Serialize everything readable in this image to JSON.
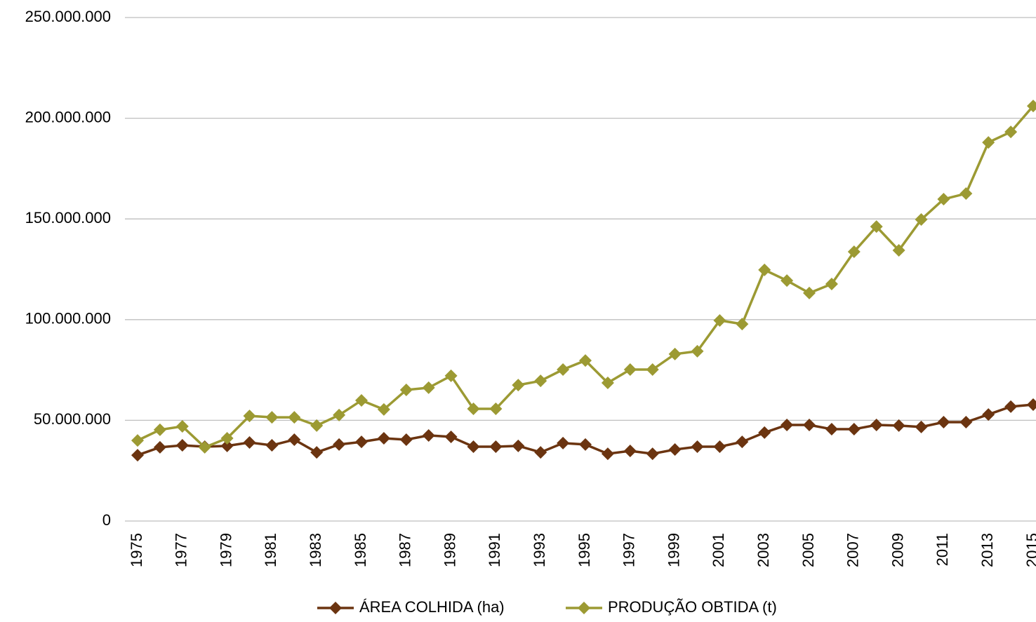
{
  "chart_data": {
    "type": "line",
    "categories": [
      "1975",
      null,
      "1977",
      null,
      "1979",
      null,
      "1981",
      null,
      "1983",
      null,
      "1985",
      null,
      "1987",
      null,
      "1989",
      null,
      "1991",
      null,
      "1993",
      null,
      "1995",
      null,
      "1997",
      null,
      "1999",
      null,
      "2001",
      null,
      "2003",
      null,
      "2005",
      null,
      "2007",
      null,
      "2009",
      null,
      "2011",
      null,
      "2013",
      null,
      "2015"
    ],
    "series": [
      {
        "name": "ÁREA COLHIDA (ha)",
        "color": "#6b3410",
        "values": [
          32700000,
          36600000,
          37600000,
          36900000,
          37300000,
          39000000,
          37600000,
          40400000,
          34100000,
          38000000,
          39300000,
          41100000,
          40400000,
          42500000,
          41800000,
          36900000,
          36900000,
          37300000,
          34100000,
          38700000,
          38000000,
          33400000,
          34800000,
          33400000,
          35500000,
          36900000,
          36900000,
          39300000,
          43900000,
          47700000,
          47700000,
          45600000,
          45600000,
          47700000,
          47400000,
          46700000,
          49100000,
          49100000,
          52900000,
          56800000,
          57800000
        ]
      },
      {
        "name": "PRODUÇÃO OBTIDA (t)",
        "color": "#9c9a33",
        "values": [
          40000000,
          45300000,
          47000000,
          36600000,
          41100000,
          52200000,
          51500000,
          51500000,
          47400000,
          52600000,
          59900000,
          55400000,
          65100000,
          66200000,
          72100000,
          55700000,
          55700000,
          67500000,
          69600000,
          75200000,
          79700000,
          68600000,
          75200000,
          75200000,
          82900000,
          84300000,
          99600000,
          97800000,
          124700000,
          119400000,
          113200000,
          117700000,
          133700000,
          146200000,
          134400000,
          149700000,
          159800000,
          162600000,
          188000000,
          193200000,
          206100000
        ]
      }
    ],
    "ylim": [
      0,
      250000000
    ],
    "yticks": [
      0,
      {
        "value": 50000000,
        "label": "50.000.000"
      },
      {
        "value": 100000000,
        "label": "100.000.000"
      },
      {
        "value": 150000000,
        "label": "150.000.000"
      },
      {
        "value": 200000000,
        "label": "200.000.000"
      },
      {
        "value": 250000000,
        "label": "250.000.000"
      }
    ],
    "grid": true,
    "legend": "bottom"
  }
}
